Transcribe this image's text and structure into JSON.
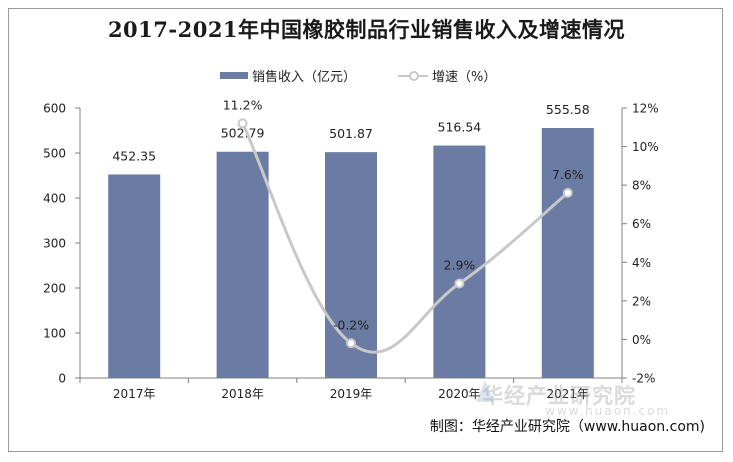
{
  "title": "2017-2021年中国橡胶制品行业销售收入及增速情况",
  "legend": {
    "bar_label": "销售收入（亿元）",
    "line_label": "增速（%）"
  },
  "credit": "制图：华经产业研究院（www.huaon.com)",
  "watermark": {
    "text": "华经产业研究院",
    "url": "www.huaon.com"
  },
  "colors": {
    "bar": "#6b7ca4",
    "line": "#c8c8c8",
    "axis": "#808080"
  },
  "chart_data": {
    "type": "bar",
    "categories": [
      "2017年",
      "2018年",
      "2019年",
      "2020年",
      "2021年"
    ],
    "series": [
      {
        "name": "销售收入（亿元）",
        "type": "bar",
        "axis": "left",
        "values": [
          452.35,
          502.79,
          501.87,
          516.54,
          555.58
        ],
        "labels": [
          "452.35",
          "502.79",
          "501.87",
          "516.54",
          "555.58"
        ]
      },
      {
        "name": "增速（%）",
        "type": "line",
        "axis": "right",
        "smooth": true,
        "values": [
          null,
          11.2,
          -0.2,
          2.9,
          7.6
        ],
        "labels": [
          "",
          "11.2%",
          "-0.2%",
          "2.9%",
          "7.6%"
        ]
      }
    ],
    "y_left": {
      "min": 0,
      "max": 600,
      "step": 100,
      "ticks": [
        "0",
        "100",
        "200",
        "300",
        "400",
        "500",
        "600"
      ]
    },
    "y_right": {
      "min": -2,
      "max": 12,
      "step": 2,
      "ticks": [
        "-2%",
        "0%",
        "2%",
        "4%",
        "6%",
        "8%",
        "10%",
        "12%"
      ]
    },
    "grid": false,
    "legend_position": "top"
  }
}
